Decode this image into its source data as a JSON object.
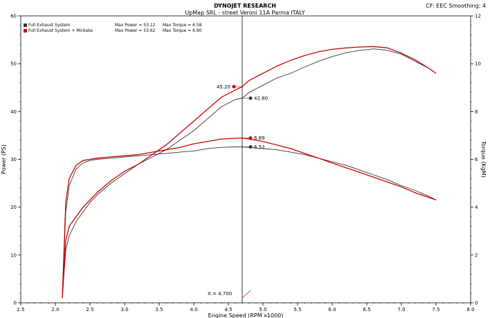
{
  "header": {
    "title": "DYNOJET RESEARCH",
    "subtitle": "UpMap SRL - street Veroni 11A Parma ITALY",
    "corner_info": "CF: EEC  Smoothing: 4"
  },
  "legend": [
    {
      "name": "Full Exhaust System",
      "color": "#333333",
      "max_power": "Max Power = 53.12",
      "max_torque": "Max Torque = 6.58"
    },
    {
      "name": "Full Exhaust System + Mintake",
      "color": "#cc0000",
      "max_power": "Max Power = 53.62",
      "max_torque": "Max Torque = 6.90"
    }
  ],
  "cursor_label": "X = 4.700",
  "chart_data": {
    "type": "line",
    "title": "DYNOJET RESEARCH",
    "subtitle": "UpMap SRL - street Veroni 11A Parma ITALY",
    "xlabel": "Engine Speed (RPM x1000)",
    "ylabel": "Power (PS)",
    "y2label": "Torque (KgM)",
    "xlim": [
      1.5,
      8.0
    ],
    "ylim": [
      0,
      60
    ],
    "y2lim": [
      0,
      12
    ],
    "xticks": [
      "1.5",
      "2.0",
      "2.5",
      "3.0",
      "3.5",
      "4.0",
      "4.5",
      "5.0",
      "5.5",
      "6.0",
      "6.5",
      "7.0",
      "7.5",
      "8.0"
    ],
    "yticks": [
      "0",
      "10",
      "20",
      "30",
      "40",
      "50",
      "60"
    ],
    "y2ticks": [
      "0",
      "2",
      "4",
      "6",
      "8",
      "10",
      "12"
    ],
    "cursor_x": 4.7,
    "series": [
      {
        "name": "Full Exhaust System",
        "kind": "power",
        "color": "#333333",
        "x": [
          2.1,
          2.15,
          2.2,
          2.3,
          2.4,
          2.5,
          2.6,
          2.8,
          3.0,
          3.2,
          3.4,
          3.6,
          3.8,
          4.0,
          4.2,
          4.4,
          4.6,
          4.7,
          4.8,
          5.0,
          5.2,
          5.4,
          5.6,
          5.8,
          6.0,
          6.2,
          6.4,
          6.6,
          6.8,
          7.0,
          7.2,
          7.4,
          7.5
        ],
        "y": [
          1,
          11,
          14,
          17,
          19,
          21,
          22.5,
          25,
          27,
          29,
          30.5,
          32,
          34,
          36,
          38.5,
          41,
          42.5,
          42.8,
          44,
          45.5,
          47,
          48,
          49.3,
          50.5,
          51.5,
          52.3,
          52.8,
          53.1,
          52.8,
          52,
          50.5,
          49,
          48
        ]
      },
      {
        "name": "Full Exhaust System + Mintake",
        "kind": "power",
        "color": "#cc0000",
        "x": [
          2.1,
          2.15,
          2.2,
          2.3,
          2.4,
          2.5,
          2.6,
          2.8,
          3.0,
          3.2,
          3.4,
          3.6,
          3.8,
          4.0,
          4.2,
          4.4,
          4.6,
          4.7,
          4.8,
          5.0,
          5.2,
          5.4,
          5.6,
          5.8,
          6.0,
          6.2,
          6.4,
          6.6,
          6.8,
          7.0,
          7.2,
          7.4,
          7.5
        ],
        "y": [
          1,
          13,
          16,
          18,
          20,
          21.5,
          23,
          25.5,
          27.5,
          29,
          31,
          33,
          35.5,
          38,
          40.5,
          43,
          44.5,
          45.2,
          46.5,
          48,
          49.5,
          50.7,
          51.7,
          52.5,
          53,
          53.3,
          53.5,
          53.6,
          53.3,
          52.2,
          50.8,
          49,
          48
        ]
      },
      {
        "name": "Full Exhaust System",
        "kind": "torque",
        "color": "#333333",
        "x": [
          2.1,
          2.15,
          2.2,
          2.3,
          2.4,
          2.5,
          2.6,
          2.8,
          3.0,
          3.2,
          3.4,
          3.6,
          3.8,
          4.0,
          4.2,
          4.4,
          4.6,
          4.7,
          4.8,
          5.0,
          5.2,
          5.4,
          5.6,
          5.8,
          6.0,
          6.2,
          6.4,
          6.6,
          6.8,
          7.0,
          7.2,
          7.4,
          7.5
        ],
        "y": [
          0.2,
          3.8,
          4.9,
          5.6,
          5.85,
          5.95,
          6.0,
          6.05,
          6.1,
          6.15,
          6.2,
          6.25,
          6.3,
          6.35,
          6.45,
          6.5,
          6.52,
          6.52,
          6.5,
          6.45,
          6.4,
          6.3,
          6.2,
          6.05,
          5.9,
          5.75,
          5.55,
          5.35,
          5.15,
          4.9,
          4.7,
          4.45,
          4.3
        ]
      },
      {
        "name": "Full Exhaust System + Mintake",
        "kind": "torque",
        "color": "#cc0000",
        "x": [
          2.1,
          2.15,
          2.2,
          2.3,
          2.4,
          2.5,
          2.6,
          2.8,
          3.0,
          3.2,
          3.4,
          3.6,
          3.8,
          4.0,
          4.2,
          4.4,
          4.6,
          4.7,
          4.8,
          5.0,
          5.2,
          5.4,
          5.6,
          5.8,
          6.0,
          6.2,
          6.4,
          6.6,
          6.8,
          7.0,
          7.2,
          7.4,
          7.5
        ],
        "y": [
          0.2,
          4.2,
          5.2,
          5.75,
          5.95,
          6.0,
          6.05,
          6.1,
          6.15,
          6.2,
          6.3,
          6.4,
          6.5,
          6.65,
          6.75,
          6.85,
          6.88,
          6.89,
          6.85,
          6.75,
          6.6,
          6.45,
          6.25,
          6.05,
          5.85,
          5.65,
          5.45,
          5.25,
          5.05,
          4.85,
          4.6,
          4.4,
          4.3
        ]
      }
    ],
    "markers": [
      {
        "series": "Full Exhaust System + Mintake",
        "kind": "power",
        "label": "45.20",
        "color": "#cc0000",
        "side": "left"
      },
      {
        "series": "Full Exhaust System",
        "kind": "power",
        "label": "42.80",
        "color": "#333333",
        "side": "right"
      },
      {
        "series": "Full Exhaust System + Mintake",
        "kind": "torque",
        "label": "6.89",
        "color": "#cc0000",
        "side": "right"
      },
      {
        "series": "Full Exhaust System",
        "kind": "torque",
        "label": "6.52",
        "color": "#333333",
        "side": "right"
      }
    ],
    "grid": false,
    "legend_position": "top-left"
  }
}
